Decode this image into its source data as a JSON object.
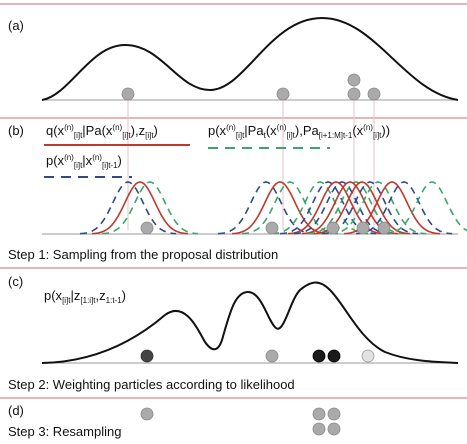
{
  "panels": {
    "a": {
      "label": "(a)"
    },
    "b": {
      "label": "(b)",
      "legend_1": {
        "q": "q(x",
        "n1": "(n)",
        "s1": "[i]t",
        "mid": "|Pa(x",
        "n2": "(n)",
        "s2": "[i]t",
        "mid2": "),z",
        "s3": "[i]t",
        "end": ")"
      },
      "legend_2": {
        "p": "p(x",
        "n1": "(n)",
        "s1": "[i]t",
        "mid": "|Pa",
        "s2": "t",
        "mid2": "(x",
        "n2": "(n)",
        "s3": "[i]t",
        "mid3": "),Pa",
        "s4": "[i+1:M]t-1",
        "mid4": "(x",
        "n3": "(n)",
        "s5": "[i]t",
        "end": "))"
      },
      "legend_3": {
        "p": "p(x",
        "n1": "(n)",
        "s1": "[i]t",
        "mid": "|x",
        "n2": "(n)",
        "s2": "[i]t-1",
        "end": ")"
      },
      "colors": {
        "proposal": "#c0392b",
        "green": "#3aa66d",
        "blue": "#2c4a8c"
      }
    },
    "step1": {
      "text": "Step 1: Sampling from the proposal distribution"
    },
    "c": {
      "label": "(c)",
      "formula": {
        "p": "p(x",
        "s1": "[i]t",
        "mid": "|z",
        "s2": "[1:i]t",
        "mid2": ",z",
        "s3": "1:t-1",
        "end": ")"
      }
    },
    "step2": {
      "text": "Step 2: Weighting particles according to likelihood"
    },
    "d": {
      "label": "(d)"
    },
    "step3": {
      "text": "Step 3: Resampling"
    }
  },
  "separator_color": "#d98a8a"
}
